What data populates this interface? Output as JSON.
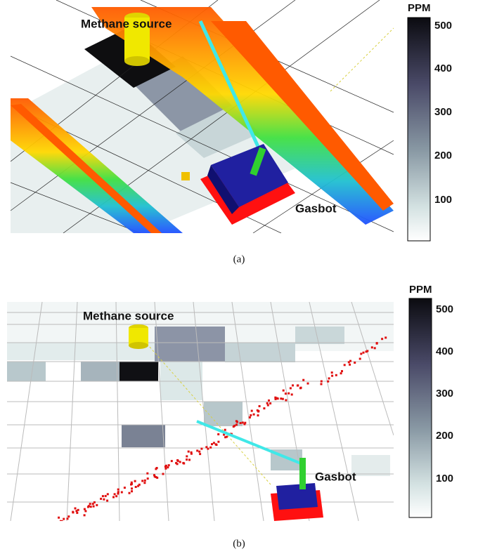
{
  "panels": [
    {
      "labels": {
        "source": "Methane source",
        "robot": "Gasbot"
      },
      "colorbar": {
        "title": "PPM",
        "ticks": [
          500,
          400,
          300,
          200,
          100
        ]
      },
      "caption": "(a)"
    },
    {
      "labels": {
        "source": "Methane source",
        "robot": "Gasbot"
      },
      "colorbar": {
        "title": "PPM",
        "ticks": [
          500,
          400,
          300,
          200,
          100
        ]
      },
      "caption": "(b)"
    }
  ]
}
